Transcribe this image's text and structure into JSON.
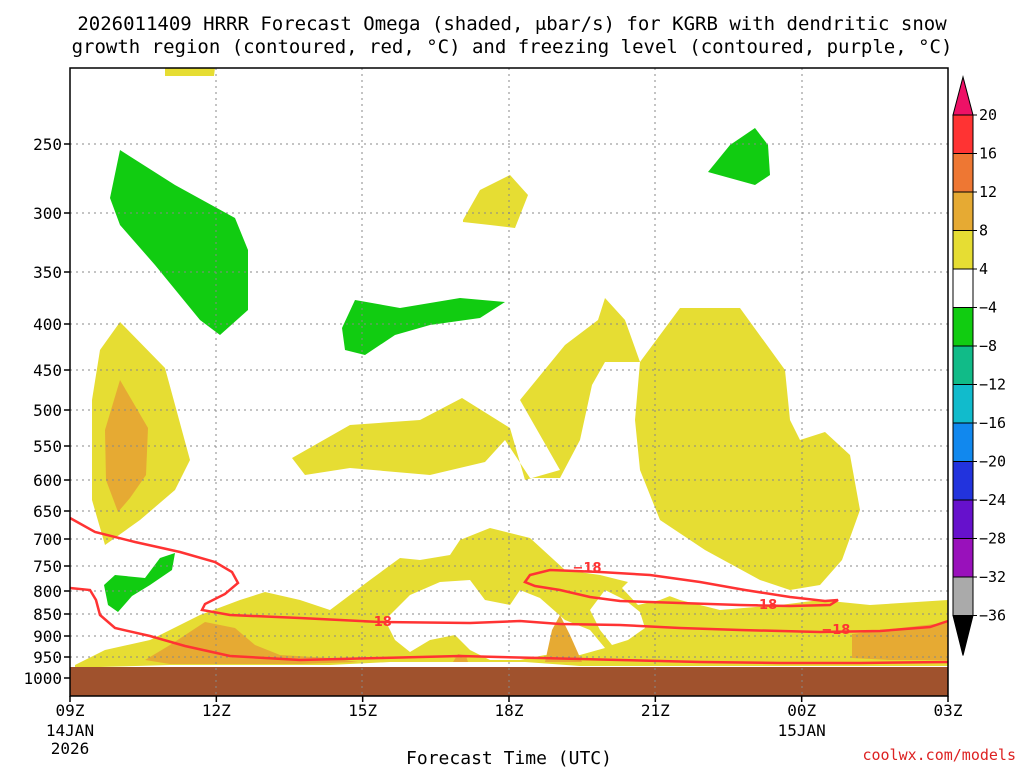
{
  "page": {
    "title_line1": "2026011409 HRRR Forecast Omega (shaded, μbar/s) for KGRB with dendritic snow",
    "title_line2": "growth region (contoured, red, °C) and freezing level (contoured, purple, °C)",
    "credit": "coolwx.com/models"
  },
  "chart_data": {
    "type": "heatmap",
    "xlabel": "Forecast Time (UTC)",
    "x_ticks": [
      {
        "label": "09Z",
        "sub1": "14JAN",
        "sub2": "2026",
        "hour": 0
      },
      {
        "label": "12Z",
        "sub1": "",
        "sub2": "",
        "hour": 3
      },
      {
        "label": "15Z",
        "sub1": "",
        "sub2": "",
        "hour": 6
      },
      {
        "label": "18Z",
        "sub1": "",
        "sub2": "",
        "hour": 9
      },
      {
        "label": "21Z",
        "sub1": "",
        "sub2": "",
        "hour": 12
      },
      {
        "label": "00Z",
        "sub1": "15JAN",
        "sub2": "",
        "hour": 15
      },
      {
        "label": "03Z",
        "sub1": "",
        "sub2": "",
        "hour": 18
      }
    ],
    "x_range_hours": [
      0,
      18
    ],
    "y_axis_pressure_hpa": [
      "250",
      "300",
      "350",
      "400",
      "450",
      "500",
      "550",
      "600",
      "650",
      "700",
      "750",
      "800",
      "850",
      "900",
      "950",
      "1000"
    ],
    "y_range_hpa": [
      200,
      1000
    ],
    "grid": true,
    "colorbar": {
      "labels": [
        "20",
        "16",
        "12",
        "8",
        "4",
        "−4",
        "−8",
        "−12",
        "−16",
        "−20",
        "−24",
        "−28",
        "−32",
        "−36"
      ],
      "colors": [
        "#ee1166",
        "#ff3333",
        "#ee7733",
        "#e6aa33",
        "#e6dd33",
        "#ffffff",
        "#11cc11",
        "#11bb88",
        "#11bbcc",
        "#1188ee",
        "#2233dd",
        "#6611cc",
        "#9911bb",
        "#aaaaaa",
        "#000000"
      ]
    },
    "contours": [
      {
        "label": "−18",
        "color": "#ff3333",
        "hour": 10.6
      },
      {
        "label": "−18",
        "color": "#ff3333",
        "hour": 6.3
      },
      {
        "label": "−18",
        "color": "#ff3333",
        "hour": 14.2
      },
      {
        "label": "−18",
        "color": "#ff3333",
        "hour": 15.7
      }
    ],
    "colors": {
      "omega_pos_weak": "#e6dd33",
      "omega_pos_mod": "#e6aa33",
      "omega_neg": "#11cc11",
      "terrain": "#a0522d",
      "contour_red": "#ff3333"
    }
  }
}
